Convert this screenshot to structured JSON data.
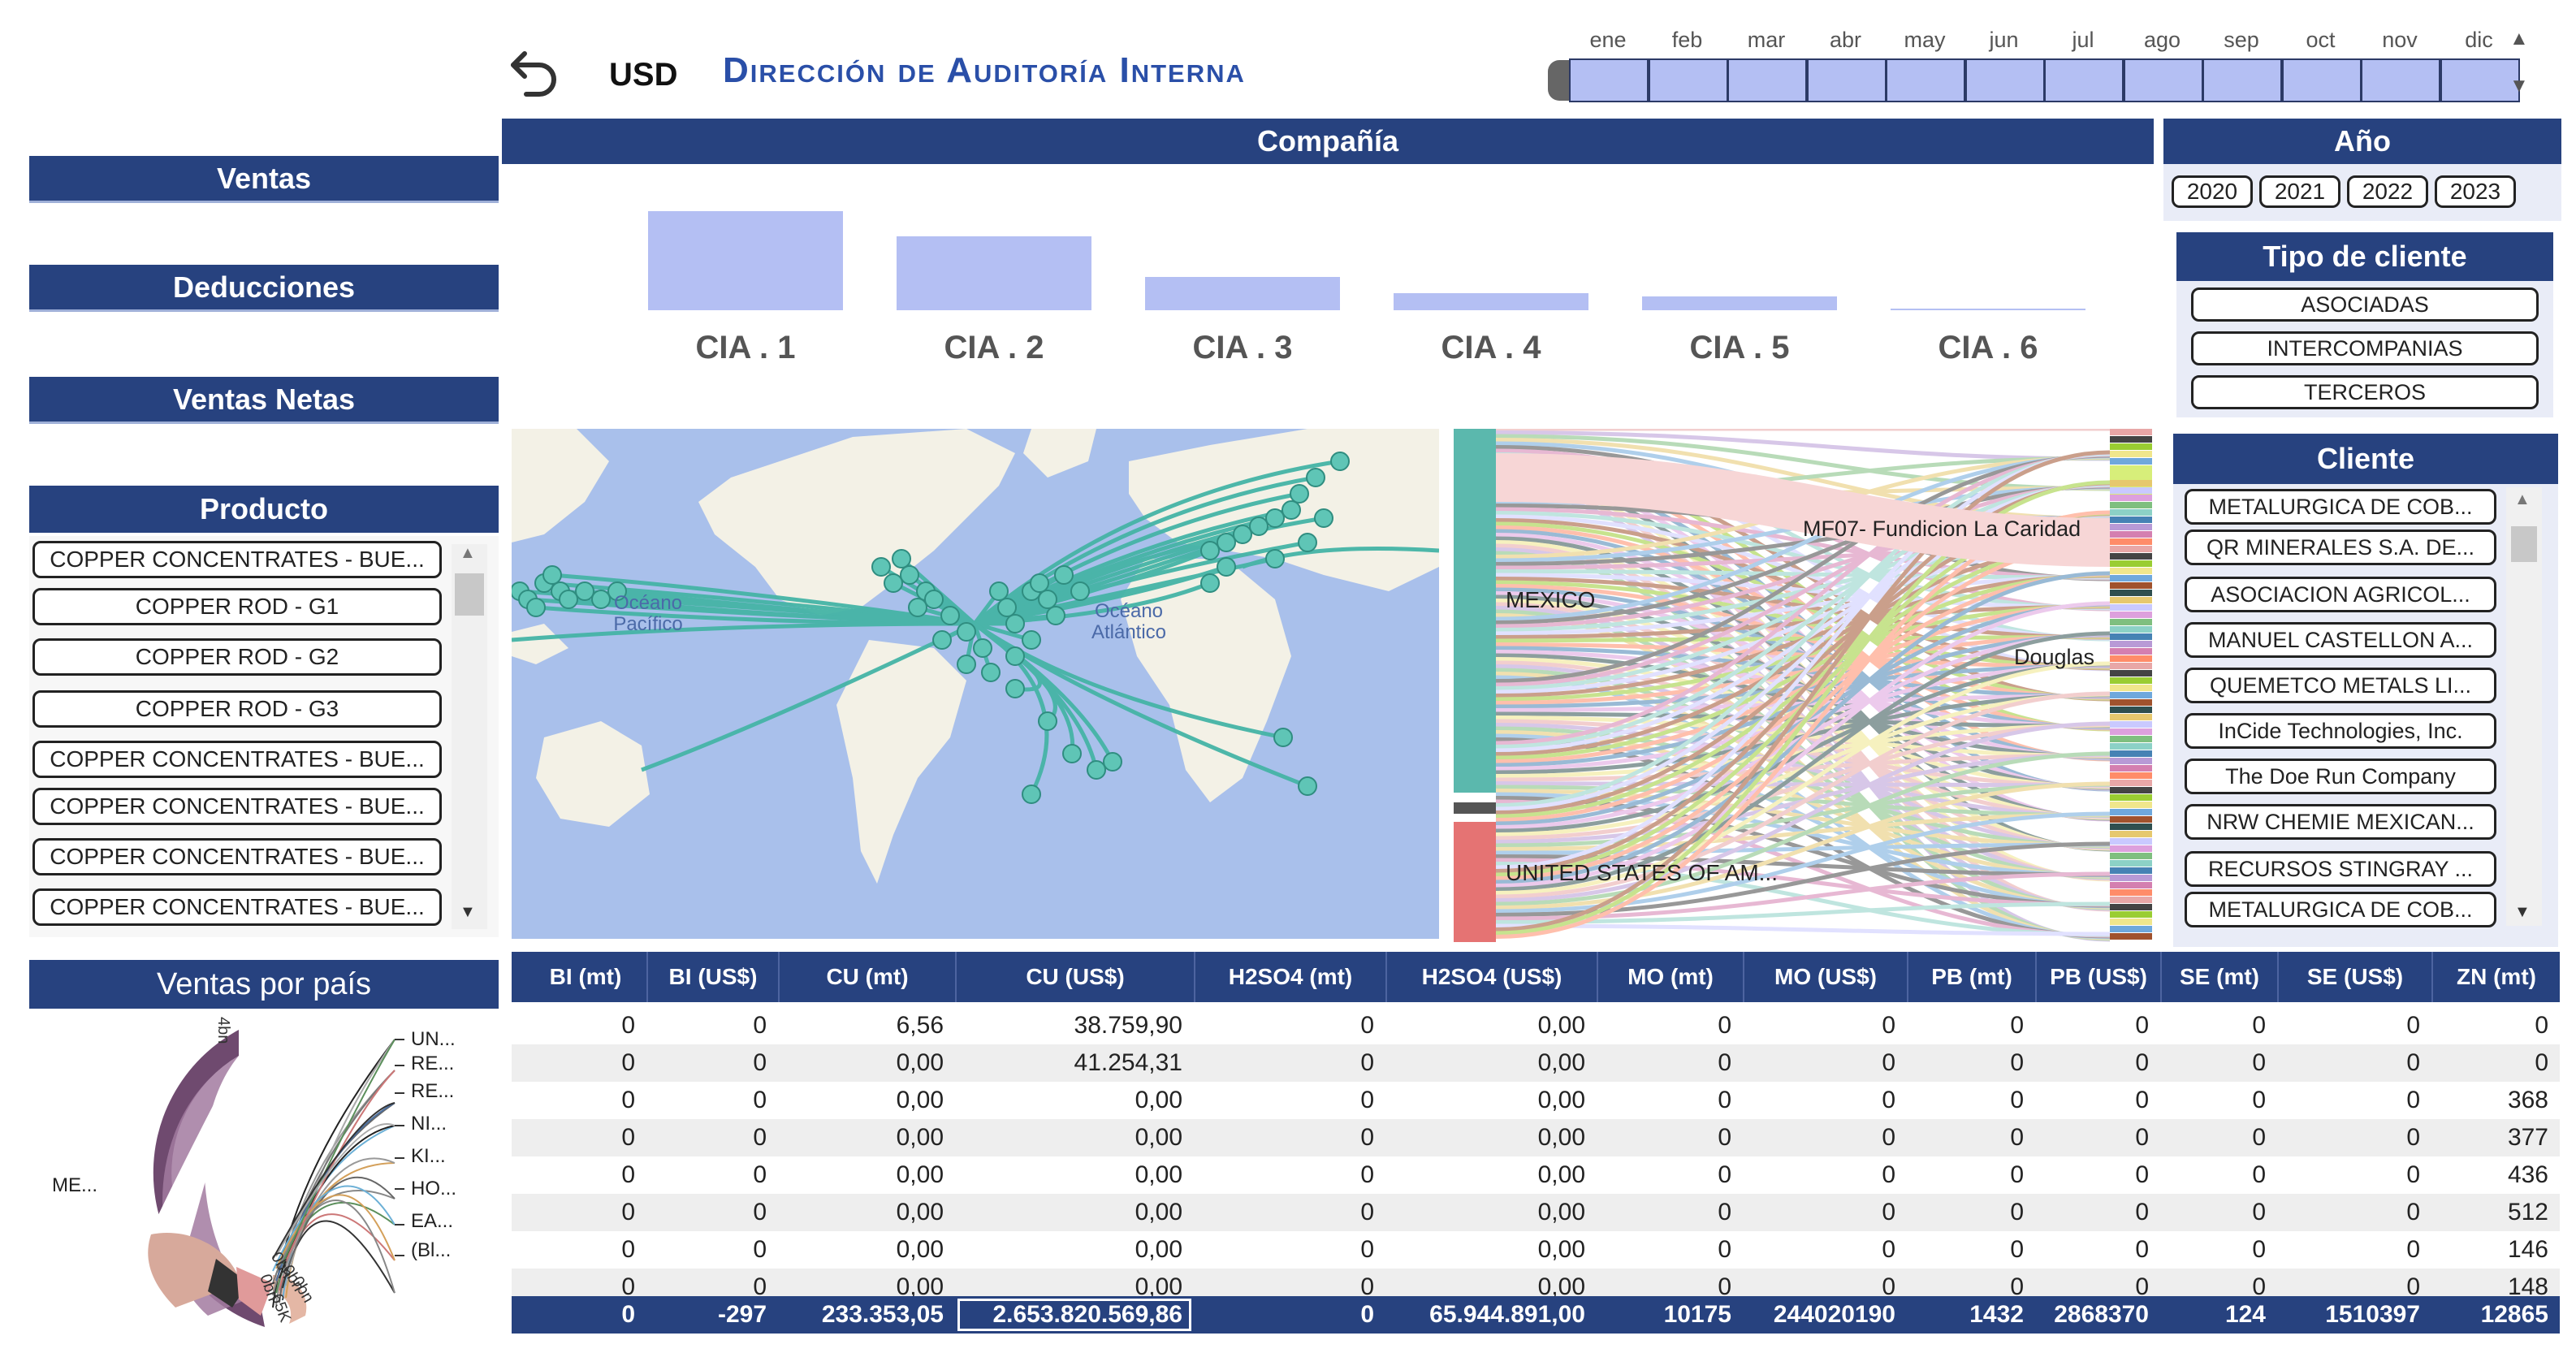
{
  "header": {
    "currency": "USD",
    "title": "Dirección de Auditoría Interna",
    "months": [
      "ene",
      "feb",
      "mar",
      "abr",
      "may",
      "jun",
      "jul",
      "ago",
      "sep",
      "oct",
      "nov",
      "dic"
    ]
  },
  "left": {
    "ventas": "Ventas",
    "deducciones": "Deducciones",
    "ventas_netas": "Ventas Netas",
    "producto_title": "Producto",
    "productos": [
      "COPPER CONCENTRATES - BUE...",
      "COPPER ROD - G1",
      "COPPER ROD - G2",
      "COPPER ROD - G3",
      "COPPER CONCENTRATES - BUE...",
      "COPPER CONCENTRATES - BUE...",
      "COPPER CONCENTRATES - BUE...",
      "COPPER CONCENTRATES - BUE..."
    ],
    "ventas_pais_title": "Ventas por país",
    "chord_labels": [
      "UN...",
      "RE...",
      "RE...",
      "NI...",
      "KI...",
      "HO...",
      "EA...",
      "(Bl...",
      "ME..."
    ],
    "chord_tick_labels": [
      "4bn",
      "0bn",
      "0bn",
      "0bn",
      "0bn",
      "65K"
    ]
  },
  "company": {
    "title": "Compañía",
    "chart_data": {
      "type": "bar",
      "categories": [
        "CIA . 1",
        "CIA . 2",
        "CIA . 3",
        "CIA . 4",
        "CIA . 5",
        "CIA . 6"
      ],
      "values": [
        100,
        75,
        34,
        17,
        14,
        2
      ]
    }
  },
  "right": {
    "anio_title": "Año",
    "years": [
      "2020",
      "2021",
      "2022",
      "2023"
    ],
    "tipo_title": "Tipo de cliente",
    "tipos": [
      "ASOCIADAS",
      "INTERCOMPANIAS",
      "TERCEROS"
    ],
    "cliente_title": "Cliente",
    "clientes": [
      "METALURGICA DE COB...",
      "QR MINERALES S.A. DE...",
      "ASOCIACION AGRICOL...",
      "MANUEL CASTELLON A...",
      "QUEMETCO METALS LI...",
      "InCide Technologies, Inc.",
      "The Doe Run Company",
      "NRW CHEMIE MEXICAN...",
      "RECURSOS STINGRAY ...",
      "METALURGICA DE COB..."
    ]
  },
  "map": {
    "ocean_pacific": [
      "Océano",
      "Pacífico"
    ],
    "ocean_atlantic": [
      "Océano",
      "Atlántico"
    ]
  },
  "sankey": {
    "left_nodes": [
      "MEXICO",
      "UNITED STATES OF AM..."
    ],
    "right_labels": [
      "MF07- Fundicion La Caridad",
      "Douglas"
    ]
  },
  "table": {
    "columns": [
      "BI (mt)",
      "BI (US$)",
      "CU (mt)",
      "CU (US$)",
      "H2SO4 (mt)",
      "H2SO4 (US$)",
      "MO (mt)",
      "MO (US$)",
      "PB (mt)",
      "PB (US$)",
      "SE (mt)",
      "SE (US$)",
      "ZN (mt)"
    ],
    "rows": [
      [
        "0",
        "0",
        "6,56",
        "38.759,90",
        "0",
        "0,00",
        "0",
        "0",
        "0",
        "0",
        "0",
        "0",
        "0"
      ],
      [
        "0",
        "0",
        "0,00",
        "41.254,31",
        "0",
        "0,00",
        "0",
        "0",
        "0",
        "0",
        "0",
        "0",
        "0"
      ],
      [
        "0",
        "0",
        "0,00",
        "0,00",
        "0",
        "0,00",
        "0",
        "0",
        "0",
        "0",
        "0",
        "0",
        "368"
      ],
      [
        "0",
        "0",
        "0,00",
        "0,00",
        "0",
        "0,00",
        "0",
        "0",
        "0",
        "0",
        "0",
        "0",
        "377"
      ],
      [
        "0",
        "0",
        "0,00",
        "0,00",
        "0",
        "0,00",
        "0",
        "0",
        "0",
        "0",
        "0",
        "0",
        "436"
      ],
      [
        "0",
        "0",
        "0,00",
        "0,00",
        "0",
        "0,00",
        "0",
        "0",
        "0",
        "0",
        "0",
        "0",
        "512"
      ],
      [
        "0",
        "0",
        "0,00",
        "0,00",
        "0",
        "0,00",
        "0",
        "0",
        "0",
        "0",
        "0",
        "0",
        "146"
      ],
      [
        "0",
        "0",
        "0,00",
        "0,00",
        "0",
        "0,00",
        "0",
        "0",
        "0",
        "0",
        "0",
        "0",
        "148"
      ]
    ],
    "totals": [
      "0",
      "-297",
      "233.353,05",
      "2.653.820.569,86",
      "0",
      "65.944.891,00",
      "10175",
      "244020190",
      "1432",
      "2868370",
      "124",
      "1510397",
      "12865"
    ]
  },
  "colors": {
    "navy": "#27427f",
    "bar": "#b4bff3",
    "map_water": "#a9c0eb",
    "map_land": "#f3f1e6",
    "route": "#45b4a6"
  }
}
